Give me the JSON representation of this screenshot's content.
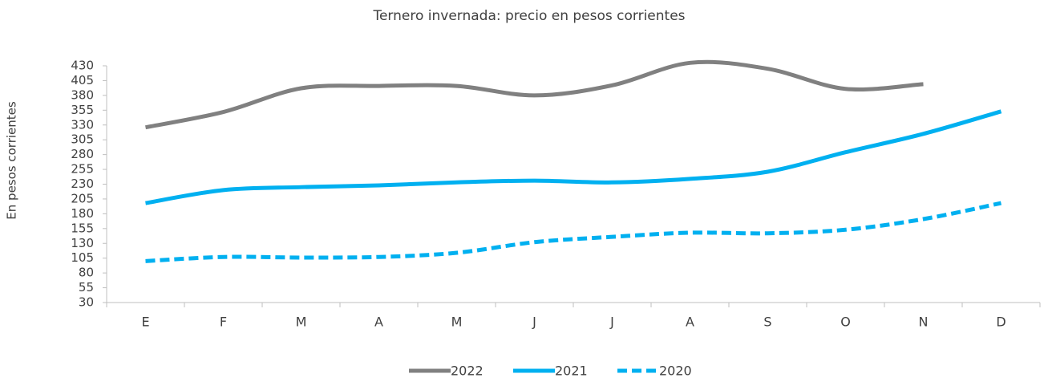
{
  "chart_data": {
    "type": "line",
    "title": "Ternero invernada: precio en pesos corrientes",
    "y_label": "En pesos corrientes",
    "categories": [
      "E",
      "F",
      "M",
      "A",
      "M",
      "J",
      "J",
      "A",
      "S",
      "O",
      "N",
      "D"
    ],
    "series": [
      {
        "name": "2022",
        "color": "#808080",
        "dashed": false,
        "values": [
          326,
          352,
          392,
          396,
          396,
          380,
          397,
          435,
          425,
          391,
          399,
          null
        ]
      },
      {
        "name": "2021",
        "color": "#00b0f0",
        "dashed": false,
        "values": [
          198,
          220,
          225,
          228,
          233,
          236,
          233,
          239,
          251,
          284,
          315,
          353
        ]
      },
      {
        "name": "2020",
        "color": "#00b0f0",
        "dashed": true,
        "values": [
          100,
          107,
          106,
          107,
          114,
          132,
          141,
          148,
          147,
          153,
          171,
          198
        ]
      }
    ],
    "ylim": [
      30,
      430
    ],
    "yticks": [
      30,
      55,
      80,
      105,
      130,
      155,
      180,
      205,
      230,
      255,
      280,
      305,
      330,
      355,
      380,
      405,
      430
    ],
    "grid": false,
    "legend": "bottom"
  }
}
